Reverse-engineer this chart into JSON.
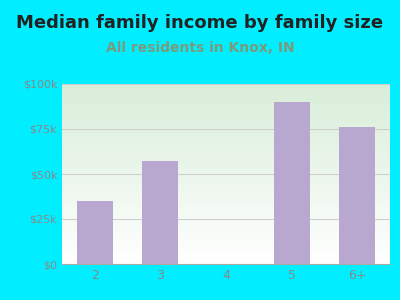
{
  "title": "Median family income by family size",
  "subtitle": "All residents in Knox, IN",
  "categories": [
    "2",
    "3",
    "4",
    "5",
    "6+"
  ],
  "values": [
    35000,
    57000,
    0,
    90000,
    76000
  ],
  "bar_color": "#b8a8d0",
  "title_fontsize": 13,
  "subtitle_fontsize": 10,
  "subtitle_color": "#7a9a7a",
  "title_color": "#222222",
  "background_outer": "#00eeff",
  "tick_label_color": "#888888",
  "ylim": [
    0,
    100000
  ],
  "yticks": [
    0,
    25000,
    50000,
    75000,
    100000
  ],
  "ytick_labels": [
    "$0",
    "$25k",
    "$50k",
    "$75k",
    "$100k"
  ],
  "grid_color": "#cccccc",
  "bg_top_left": "#d8eed8",
  "bg_bottom_right": "#ffffff"
}
